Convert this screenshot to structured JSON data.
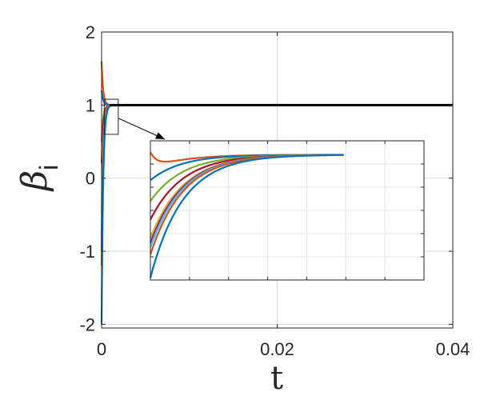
{
  "chart_data": {
    "type": "line",
    "title": "",
    "xlabel": "t",
    "ylabel_symbol": "β",
    "ylabel_subscript": "i",
    "xlim": [
      0,
      0.04
    ],
    "ylim": [
      -2.05,
      2
    ],
    "x_ticks": [
      0,
      0.02,
      0.04
    ],
    "x_tick_labels": [
      "0",
      "0.02",
      "0.04"
    ],
    "y_ticks": [
      -2,
      -1,
      0,
      1,
      2
    ],
    "y_tick_labels": [
      "-2",
      "-1",
      "0",
      "1",
      "2"
    ],
    "grid": true,
    "reference_line": {
      "y": 1,
      "color": "#000000"
    },
    "series": [
      {
        "color": "#D95319",
        "initial": 1.6
      },
      {
        "color": "#0072BD",
        "initial": 1.2
      },
      {
        "color": "#77AC30",
        "initial": 0.5
      },
      {
        "color": "#A2142F",
        "initial": 0.2
      },
      {
        "color": "#EDB120",
        "initial": -0.5
      },
      {
        "color": "#4DBEEE",
        "initial": -0.8
      },
      {
        "color": "#7E2F8E",
        "initial": -1.0
      },
      {
        "color": "#D95319",
        "initial": -1.2
      },
      {
        "color": "#0072BD",
        "initial": -2.0
      }
    ],
    "inset": {
      "zoom_box": {
        "x": [
          0.0003,
          0.0019
        ],
        "y": [
          0.6,
          1.08
        ]
      },
      "series": [
        {
          "color": "#D95319",
          "initial": 0.95
        },
        {
          "color": "#0072BD",
          "initial": 0.83
        },
        {
          "color": "#77AC30",
          "initial": 0.74
        },
        {
          "color": "#A2142F",
          "initial": 0.66
        },
        {
          "color": "#EDB120",
          "initial": 0.58
        },
        {
          "color": "#7E2F8E",
          "initial": 0.56
        },
        {
          "color": "#4DBEEE",
          "initial": 0.54
        },
        {
          "color": "#D95319",
          "initial": 0.51
        },
        {
          "color": "#0072BD",
          "initial": 0.41
        }
      ]
    }
  }
}
